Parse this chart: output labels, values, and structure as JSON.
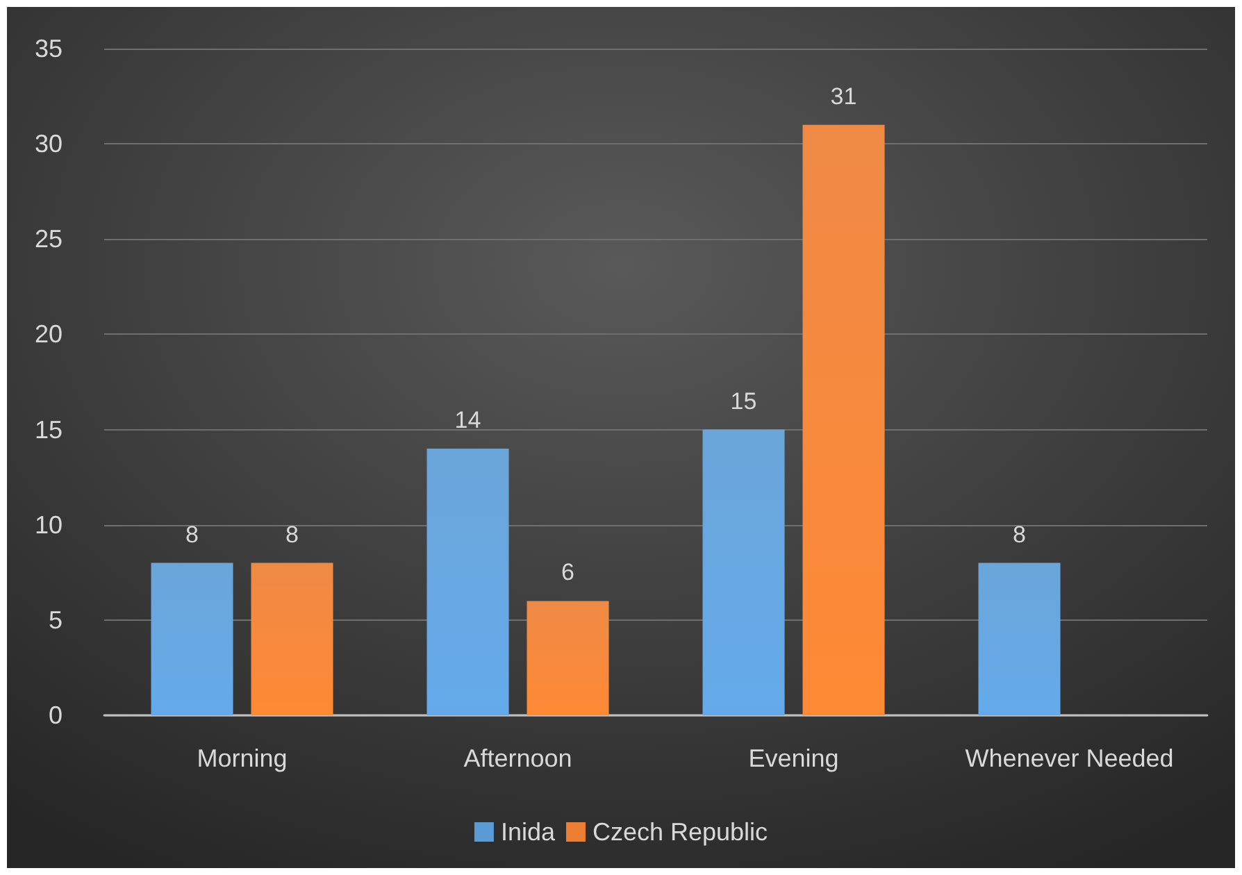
{
  "chart_data": {
    "type": "bar",
    "categories": [
      "Morning",
      "Afternoon",
      "Evening",
      "Whenever Needed"
    ],
    "series": [
      {
        "name": "Inida",
        "color": "#5b9bd5",
        "values": [
          8,
          14,
          15,
          8
        ]
      },
      {
        "name": "Czech Republic",
        "color": "#ed7d31",
        "values": [
          8,
          6,
          31,
          null
        ]
      }
    ],
    "ylim": [
      0,
      35
    ],
    "yticks": [
      0,
      5,
      10,
      15,
      20,
      25,
      30,
      35
    ],
    "grid": "y",
    "legend": "bottom",
    "data_labels": true
  }
}
